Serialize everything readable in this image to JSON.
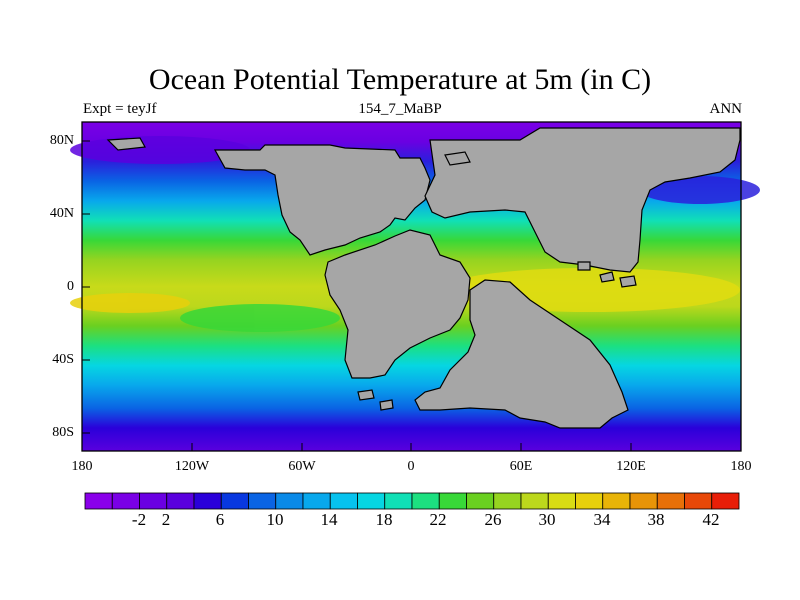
{
  "title": "Ocean Potential Temperature at 5m (in C)",
  "subtitle_left": "Expt = teyJf",
  "subtitle_center": "154_7_MaBP",
  "subtitle_right": "ANN",
  "lat_labels": [
    "80N",
    "40N",
    "0",
    "40S",
    "80S"
  ],
  "lon_labels": [
    "180",
    "120W",
    "60W",
    "0",
    "60E",
    "120E",
    "180"
  ],
  "colorbar": {
    "labels": [
      "-2",
      "2",
      "6",
      "10",
      "14",
      "18",
      "22",
      "26",
      "30",
      "34",
      "38",
      "42"
    ],
    "colors": [
      "#8a00ea",
      "#7a00e6",
      "#6a00e2",
      "#5a00de",
      "#2a00da",
      "#0838e0",
      "#0a64e4",
      "#0a8ae8",
      "#08a8ec",
      "#06c2ee",
      "#06d6e2",
      "#10e0b6",
      "#1ce080",
      "#38d838",
      "#6ad020",
      "#96d420",
      "#bcd81c",
      "#d8dc14",
      "#e8d00c",
      "#e8b408",
      "#e89408",
      "#e87008",
      "#e84808",
      "#e81e08"
    ]
  },
  "land_color": "#a6a6a6"
}
